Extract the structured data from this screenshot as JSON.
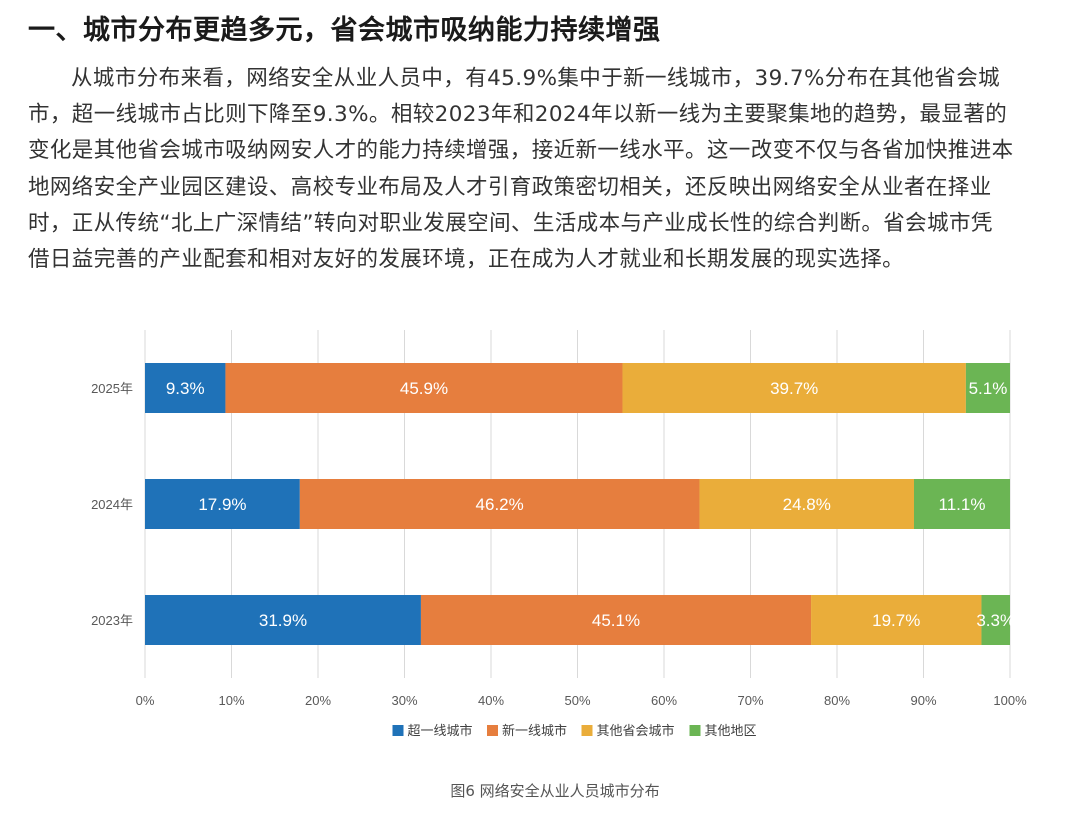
{
  "heading": "一、城市分布更趋多元，省会城市吸纳能力持续增强",
  "paragraph_lines": [
    "从城市分布来看，网络安全从业人员中，有45.9%集中于新一线城市，39.7%分布在其他省会城",
    "市，超一线城市占比则下降至9.3%。相较2023年和2024年以新一线为主要聚集地的趋势，最显著的",
    "变化是其他省会城市吸纳网安人才的能力持续增强，接近新一线水平。这一改变不仅与各省加快推进本",
    "地网络安全产业园区建设、高校专业布局及人才引育政策密切相关，还反映出网络安全从业者在择业",
    "时，正从传统“北上广深情结”转向对职业发展空间、生活成本与产业成长性的综合判断。省会城市凭",
    "借日益完善的产业配套和相对友好的发展环境，正在成为人才就业和长期发展的现实选择。"
  ],
  "caption": "图6 网络安全从业人员城市分布",
  "chart_data": {
    "type": "bar",
    "orientation": "horizontal",
    "stacked": true,
    "categories": [
      "2025年",
      "2024年",
      "2023年"
    ],
    "series": [
      {
        "name": "超一线城市",
        "color": "#1F72B8",
        "values": [
          9.3,
          17.9,
          31.9
        ],
        "labels": [
          "9.3%",
          "17.9%",
          "31.9%"
        ]
      },
      {
        "name": "新一线城市",
        "color": "#E67E3E",
        "values": [
          45.9,
          46.2,
          45.1
        ],
        "labels": [
          "45.9%",
          "46.2%",
          "45.1%"
        ]
      },
      {
        "name": "其他省会城市",
        "color": "#EAAD3A",
        "values": [
          39.7,
          24.8,
          19.7
        ],
        "labels": [
          "39.7%",
          "24.8%",
          "19.7%"
        ]
      },
      {
        "name": "其他地区",
        "color": "#6BB554",
        "values": [
          5.1,
          11.1,
          3.3
        ],
        "labels": [
          "5.1%",
          "11.1%",
          "3.3%"
        ]
      }
    ],
    "xlim": [
      0,
      100
    ],
    "xticks": [
      "0%",
      "10%",
      "20%",
      "30%",
      "40%",
      "50%",
      "60%",
      "70%",
      "80%",
      "90%",
      "100%"
    ],
    "grid": true,
    "legend": "bottom",
    "label_color": "#ffffff",
    "grid_color": "#d9d9d9",
    "tick_color": "#595959"
  }
}
